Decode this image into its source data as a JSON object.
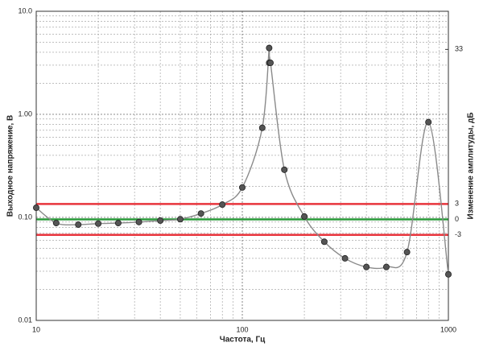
{
  "chart_data": {
    "type": "scatter",
    "x_label": "Частота, Гц",
    "y_label": "Выходное напряжение, В",
    "y2_label": "Изменение амплитуды, дБ",
    "xscale": "log",
    "yscale": "log",
    "grid": true,
    "xlim": [
      10,
      1000
    ],
    "xticks": [
      10,
      100,
      1000
    ],
    "ylim": [
      0.01,
      10
    ],
    "yticks": [
      {
        "value": 0.01,
        "label": "0.01"
      },
      {
        "value": 0.1,
        "label": "0.10"
      },
      {
        "value": 1,
        "label": "1.00"
      },
      {
        "value": 10,
        "label": "10.0"
      }
    ],
    "y2lim": [
      -19.6,
      40.4
    ],
    "y2ticks": [
      -3,
      0,
      3,
      33
    ],
    "reference_lines": [
      {
        "value": 3,
        "axis": "y2",
        "color": "#e8343c"
      },
      {
        "value": 0,
        "axis": "y2",
        "color": "#2a9a3a"
      },
      {
        "value": -3,
        "axis": "y2",
        "color": "#e8343c"
      }
    ],
    "series": [
      {
        "color": "#555555",
        "line_color": "#8a8a8a",
        "x": [
          10,
          12.5,
          16,
          20,
          25,
          31.5,
          40,
          50,
          63,
          80,
          100,
          125,
          135,
          135,
          137,
          160,
          200,
          250,
          315,
          400,
          500,
          630,
          800,
          1000
        ],
        "values": [
          0.124,
          0.088,
          0.085,
          0.087,
          0.088,
          0.09,
          0.093,
          0.096,
          0.109,
          0.133,
          0.195,
          0.74,
          4.4,
          3.16,
          3.16,
          0.29,
          0.102,
          0.058,
          0.04,
          0.033,
          0.033,
          0.046,
          0.84,
          0.028
        ]
      }
    ]
  }
}
